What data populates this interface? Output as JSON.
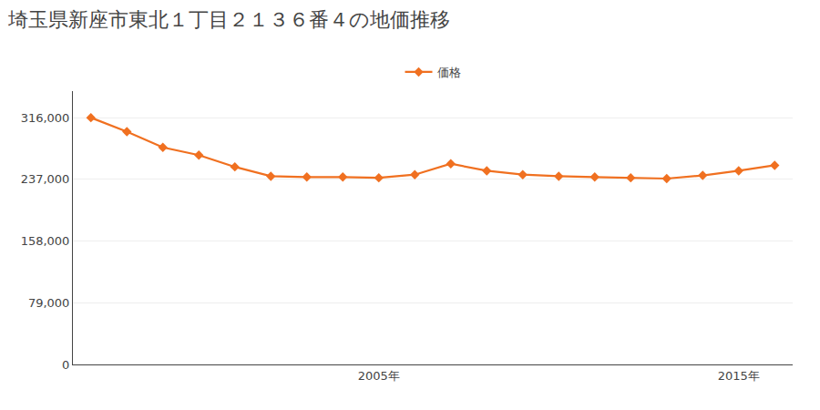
{
  "chart_data": {
    "type": "line",
    "title": "埼玉県新座市東北１丁目２１３６番４の地価推移",
    "x": [
      1997,
      1998,
      1999,
      2000,
      2001,
      2002,
      2003,
      2004,
      2005,
      2006,
      2007,
      2008,
      2009,
      2010,
      2011,
      2012,
      2013,
      2014,
      2015,
      2016
    ],
    "series": [
      {
        "name": "価格",
        "color": "#f07020",
        "values": [
          316000,
          298000,
          278000,
          268000,
          253000,
          241000,
          240000,
          240000,
          239000,
          243000,
          257000,
          248000,
          243000,
          241000,
          240000,
          239000,
          238000,
          242000,
          248000,
          255000
        ]
      }
    ],
    "marker": "diamond",
    "line_style": "solid",
    "xlim": [
      1996.5,
      2016.5
    ],
    "xticks": [
      {
        "value": 2005,
        "label": "2005年"
      },
      {
        "value": 2015,
        "label": "2015年"
      }
    ],
    "ylim": [
      0,
      350000
    ],
    "yticks": [
      0,
      {
        "value": 79000,
        "label": "79,000"
      },
      {
        "value": 158000,
        "label": "158,000"
      },
      {
        "value": 237000,
        "label": "237,000"
      },
      {
        "value": 316000,
        "label": "316,000"
      }
    ],
    "grid": true,
    "legend": "top"
  }
}
